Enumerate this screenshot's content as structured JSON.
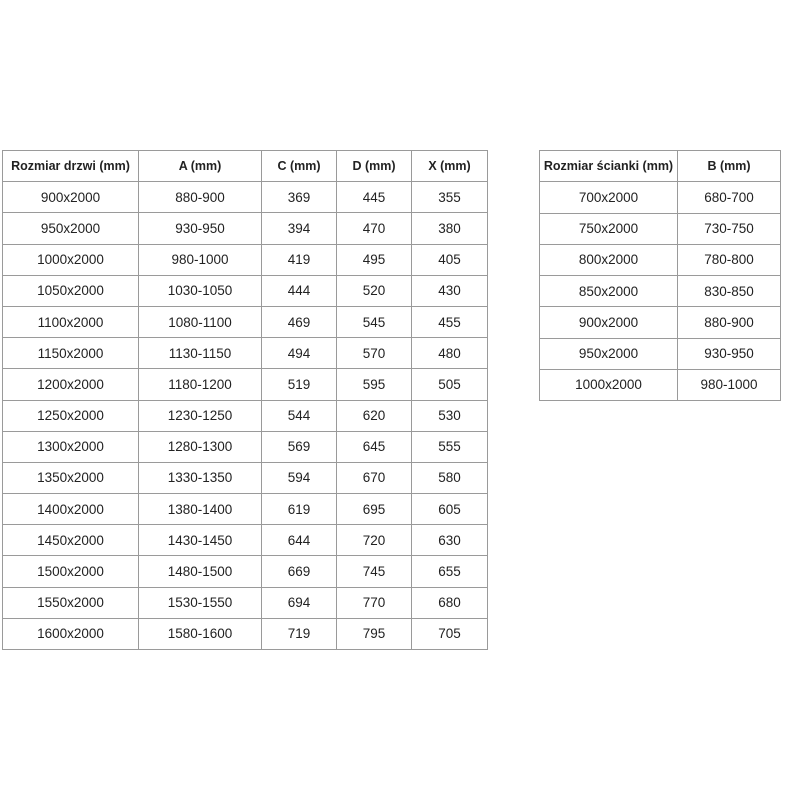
{
  "door_table": {
    "headers": [
      "Rozmiar drzwi (mm)",
      "A (mm)",
      "C (mm)",
      "D (mm)",
      "X (mm)"
    ],
    "rows": [
      [
        "900x2000",
        "880-900",
        "369",
        "445",
        "355"
      ],
      [
        "950x2000",
        "930-950",
        "394",
        "470",
        "380"
      ],
      [
        "1000x2000",
        "980-1000",
        "419",
        "495",
        "405"
      ],
      [
        "1050x2000",
        "1030-1050",
        "444",
        "520",
        "430"
      ],
      [
        "1100x2000",
        "1080-1100",
        "469",
        "545",
        "455"
      ],
      [
        "1150x2000",
        "1130-1150",
        "494",
        "570",
        "480"
      ],
      [
        "1200x2000",
        "1180-1200",
        "519",
        "595",
        "505"
      ],
      [
        "1250x2000",
        "1230-1250",
        "544",
        "620",
        "530"
      ],
      [
        "1300x2000",
        "1280-1300",
        "569",
        "645",
        "555"
      ],
      [
        "1350x2000",
        "1330-1350",
        "594",
        "670",
        "580"
      ],
      [
        "1400x2000",
        "1380-1400",
        "619",
        "695",
        "605"
      ],
      [
        "1450x2000",
        "1430-1450",
        "644",
        "720",
        "630"
      ],
      [
        "1500x2000",
        "1480-1500",
        "669",
        "745",
        "655"
      ],
      [
        "1550x2000",
        "1530-1550",
        "694",
        "770",
        "680"
      ],
      [
        "1600x2000",
        "1580-1600",
        "719",
        "795",
        "705"
      ]
    ]
  },
  "wall_table": {
    "headers": [
      "Rozmiar ścianki (mm)",
      "B (mm)"
    ],
    "rows": [
      [
        "700x2000",
        "680-700"
      ],
      [
        "750x2000",
        "730-750"
      ],
      [
        "800x2000",
        "780-800"
      ],
      [
        "850x2000",
        "830-850"
      ],
      [
        "900x2000",
        "880-900"
      ],
      [
        "950x2000",
        "930-950"
      ],
      [
        "1000x2000",
        "980-1000"
      ]
    ]
  }
}
